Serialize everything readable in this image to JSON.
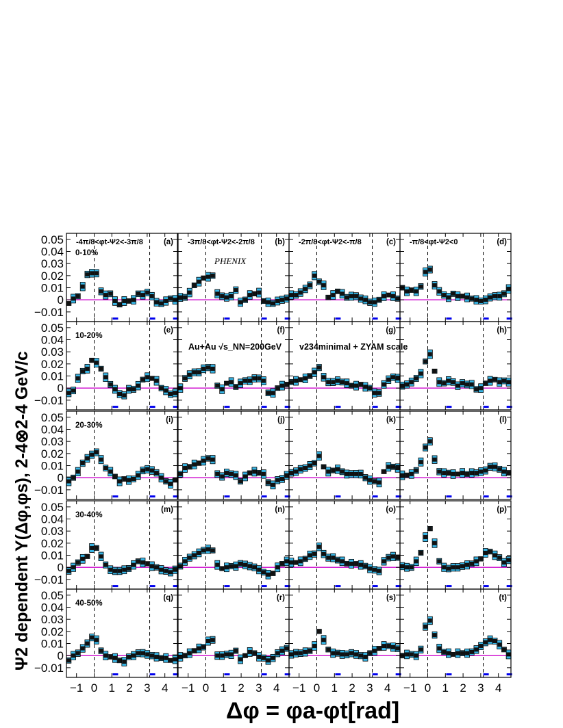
{
  "chart_data": {
    "type": "scatter",
    "experiment_label": "PHENIX",
    "collision_label": "Au+Au √s_NN=200GeV",
    "method_label": "v234minimal + ZYAM scale",
    "ylabel": "Ψ2 dependent Y(Δφ,φs), 2-4⊗2-4 GeV/c",
    "xlabel": "Δφ =  φa-φt[rad]",
    "xlim": [
      -1.57,
      4.71
    ],
    "ylim": [
      -0.018,
      0.055
    ],
    "x_ticks": [
      "−1",
      "0",
      "1",
      "2",
      "3",
      "4"
    ],
    "y_ticks": [
      "0.05",
      "0.04",
      "0.03",
      "0.02",
      "0.01",
      "0",
      "−0.01"
    ],
    "angle_bins": [
      "-4π/8<φt-Ψ2<-3π/8",
      "-3π/8<φt-Ψ2<-2π/8",
      "-2π/8<φt-Ψ2<-π/8",
      "-π/8<φt-Ψ2<0"
    ],
    "centralities": [
      "0-10%",
      "10-20%",
      "20-30%",
      "30-40%",
      "40-50%"
    ],
    "panel_tags": [
      "(a)",
      "(b)",
      "(c)",
      "(d)",
      "(e)",
      "(f)",
      "(g)",
      "(h)",
      "(i)",
      "(j)",
      "(k)",
      "(l)",
      "(m)",
      "(n)",
      "(o)",
      "(p)",
      "(q)",
      "(r)",
      "(s)",
      "(t)"
    ],
    "x": [
      -1.44,
      -1.18,
      -0.92,
      -0.65,
      -0.39,
      -0.13,
      0.13,
      0.39,
      0.65,
      0.92,
      1.18,
      1.44,
      1.7,
      1.96,
      2.23,
      2.49,
      2.75,
      3.01,
      3.27,
      3.53,
      3.8,
      4.06,
      4.32,
      4.58
    ],
    "series": [
      {
        "panel": "a",
        "values": [
          -0.003,
          0.001,
          0.003,
          0.011,
          0.021,
          0.022,
          0.022,
          0.007,
          0.004,
          0.005,
          -0.001,
          -0.004,
          -0.001,
          -0.001,
          0.0,
          0.005,
          0.004,
          0.006,
          0.003,
          -0.002,
          -0.003,
          -0.001,
          0.001,
          0.0
        ]
      },
      {
        "panel": "b",
        "values": [
          0.002,
          0.002,
          0.006,
          0.012,
          0.015,
          0.018,
          0.019,
          0.02,
          0.005,
          0.003,
          0.002,
          0.003,
          0.008,
          -0.002,
          0.0,
          0.004,
          0.005,
          0.006,
          -0.001,
          -0.002,
          -0.003,
          -0.001,
          0.0,
          0.001
        ]
      },
      {
        "panel": "c",
        "values": [
          0.004,
          0.004,
          0.006,
          0.009,
          0.012,
          0.02,
          0.015,
          0.012,
          0.002,
          0.004,
          0.007,
          0.005,
          0.002,
          0.003,
          0.003,
          0.001,
          0.0,
          -0.002,
          -0.002,
          0.0,
          0.003,
          0.004,
          0.003,
          0.001
        ]
      },
      {
        "panel": "d",
        "values": [
          0.01,
          0.007,
          0.008,
          0.007,
          0.011,
          0.023,
          0.025,
          0.012,
          0.007,
          0.004,
          0.002,
          0.005,
          0.003,
          0.003,
          0.002,
          0.001,
          0.0,
          -0.001,
          0.0,
          0.002,
          0.003,
          0.003,
          0.005,
          0.009
        ]
      },
      {
        "panel": "e",
        "values": [
          -0.004,
          -0.002,
          0.008,
          0.014,
          0.016,
          0.023,
          0.021,
          0.016,
          0.009,
          0.003,
          -0.001,
          -0.005,
          -0.006,
          -0.001,
          -0.001,
          0.002,
          0.007,
          0.009,
          0.008,
          0.006,
          0.0,
          -0.002,
          -0.005,
          -0.004
        ]
      },
      {
        "panel": "f",
        "values": [
          0.0,
          0.008,
          0.011,
          0.013,
          0.013,
          0.016,
          0.017,
          0.016,
          0.002,
          -0.001,
          0.004,
          0.005,
          0.001,
          0.004,
          0.006,
          0.006,
          0.008,
          0.008,
          0.006,
          -0.004,
          -0.004,
          0.0,
          0.002,
          0.003
        ]
      },
      {
        "panel": "g",
        "values": [
          0.005,
          0.006,
          0.007,
          0.008,
          0.01,
          0.013,
          0.017,
          0.009,
          0.005,
          0.005,
          0.006,
          0.005,
          0.004,
          0.002,
          0.002,
          0.003,
          0.001,
          0.0,
          -0.004,
          -0.004,
          0.003,
          0.007,
          0.009,
          0.008
        ]
      },
      {
        "panel": "h",
        "values": [
          0.002,
          0.003,
          0.005,
          0.008,
          0.012,
          0.022,
          0.028,
          0.014,
          0.005,
          0.004,
          0.006,
          0.005,
          0.002,
          0.004,
          0.003,
          0.003,
          -0.001,
          0.0,
          0.004,
          0.006,
          0.007,
          0.005,
          0.006,
          0.005
        ]
      },
      {
        "panel": "i",
        "values": [
          -0.003,
          0.0,
          0.005,
          0.012,
          0.016,
          0.019,
          0.021,
          0.015,
          0.008,
          0.005,
          0.001,
          -0.003,
          -0.001,
          -0.002,
          -0.001,
          0.002,
          0.006,
          0.007,
          0.006,
          0.004,
          0.0,
          -0.003,
          -0.005,
          -0.002
        ]
      },
      {
        "panel": "j",
        "values": [
          0.003,
          0.008,
          0.009,
          0.011,
          0.012,
          0.014,
          0.016,
          0.015,
          0.003,
          0.001,
          0.004,
          0.003,
          0.002,
          -0.003,
          0.001,
          0.004,
          0.005,
          0.004,
          0.003,
          -0.004,
          -0.006,
          -0.002,
          -0.001,
          0.002
        ]
      },
      {
        "panel": "k",
        "values": [
          0.004,
          0.005,
          0.007,
          0.008,
          0.01,
          0.012,
          0.018,
          0.009,
          0.005,
          0.006,
          0.007,
          0.005,
          0.003,
          0.003,
          0.003,
          0.003,
          0.0,
          -0.002,
          -0.003,
          -0.004,
          0.005,
          0.009,
          0.009,
          0.008
        ]
      },
      {
        "panel": "l",
        "values": [
          0.002,
          0.002,
          0.003,
          0.006,
          0.013,
          0.025,
          0.03,
          0.015,
          0.005,
          0.004,
          0.004,
          0.003,
          0.003,
          0.004,
          0.003,
          0.004,
          0.004,
          0.005,
          0.006,
          0.009,
          0.009,
          0.007,
          0.005,
          0.004
        ]
      },
      {
        "panel": "m",
        "values": [
          -0.003,
          0.0,
          0.004,
          0.007,
          0.009,
          0.016,
          0.016,
          0.009,
          0.002,
          -0.002,
          -0.003,
          -0.003,
          -0.002,
          -0.001,
          0.002,
          0.005,
          0.004,
          0.003,
          0.001,
          0.0,
          -0.002,
          -0.003,
          -0.004,
          -0.002
        ]
      },
      {
        "panel": "n",
        "values": [
          0.001,
          0.005,
          0.008,
          0.01,
          0.012,
          0.014,
          0.015,
          0.014,
          0.002,
          -0.001,
          0.0,
          0.001,
          0.001,
          0.003,
          0.002,
          0.001,
          0.0,
          -0.002,
          -0.004,
          -0.006,
          -0.005,
          0.0,
          0.003,
          0.005
        ]
      },
      {
        "panel": "o",
        "values": [
          0.004,
          0.004,
          0.005,
          0.007,
          0.01,
          0.011,
          0.017,
          0.011,
          0.008,
          0.008,
          0.006,
          0.005,
          0.003,
          0.003,
          0.003,
          0.002,
          0.001,
          -0.001,
          -0.002,
          -0.003,
          0.005,
          0.008,
          0.009,
          0.008
        ]
      },
      {
        "panel": "p",
        "values": [
          0.001,
          0.0,
          0.0,
          0.005,
          0.012,
          0.025,
          0.032,
          0.02,
          0.005,
          0.0,
          -0.001,
          0.0,
          0.0,
          0.001,
          0.002,
          0.003,
          0.005,
          0.007,
          0.012,
          0.013,
          0.01,
          0.008,
          0.004,
          0.006
        ]
      },
      {
        "panel": "q",
        "values": [
          -0.004,
          0.0,
          0.002,
          0.006,
          0.01,
          0.015,
          0.013,
          0.004,
          0.0,
          -0.001,
          -0.002,
          -0.004,
          -0.005,
          -0.001,
          0.0,
          0.002,
          0.002,
          0.001,
          0.0,
          -0.001,
          -0.002,
          -0.002,
          -0.004,
          -0.003
        ]
      },
      {
        "panel": "r",
        "values": [
          -0.001,
          0.0,
          0.002,
          0.004,
          0.006,
          0.007,
          0.012,
          0.013,
          0.0,
          0.0,
          0.001,
          0.001,
          0.004,
          -0.003,
          0.0,
          0.003,
          0.002,
          -0.001,
          -0.002,
          -0.004,
          -0.002,
          0.002,
          0.004,
          0.006
        ]
      },
      {
        "panel": "s",
        "values": [
          0.001,
          0.002,
          0.002,
          0.003,
          0.004,
          0.008,
          0.02,
          0.013,
          0.005,
          0.002,
          0.002,
          0.001,
          0.001,
          0.002,
          0.001,
          0.0,
          -0.001,
          0.002,
          0.004,
          0.006,
          0.008,
          0.008,
          0.007,
          0.006
        ]
      },
      {
        "panel": "t",
        "values": [
          0.0,
          0.001,
          0.001,
          0.0,
          0.005,
          0.024,
          0.029,
          0.017,
          0.006,
          0.003,
          0.002,
          0.001,
          0.002,
          0.002,
          0.002,
          0.003,
          0.005,
          0.008,
          0.011,
          0.013,
          0.012,
          0.009,
          0.005,
          0.001
        ]
      }
    ],
    "colors": {
      "box_fill": "#38b6e6",
      "box_stroke": "#000000",
      "point": "#111111",
      "zero_line": "#cc00cc",
      "error_bar": "#0000ee",
      "axis": "#000000"
    }
  }
}
